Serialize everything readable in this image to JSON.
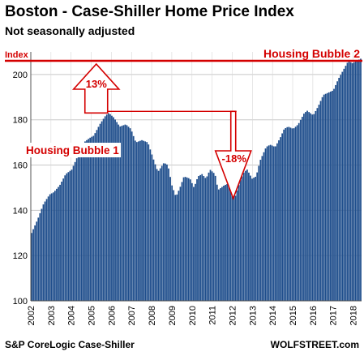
{
  "chart_data": {
    "type": "bar",
    "title": "Boston - Case-Shiller Home Price Index",
    "subtitle": "Not seasonally adjusted",
    "ylabel": "Index",
    "source": "S&P CoreLogic Case-Shiller",
    "watermark": "WOLFSTREET.com",
    "ylim": [
      100,
      210
    ],
    "yticks": [
      100,
      120,
      140,
      160,
      180,
      200
    ],
    "x_start": 2002,
    "x_end": 2018.42,
    "xticks": [
      "2002",
      "2003",
      "2004",
      "2005",
      "2006",
      "2007",
      "2008",
      "2009",
      "2010",
      "2011",
      "2012",
      "2013",
      "2014",
      "2015",
      "2016",
      "2017",
      "2018"
    ],
    "bar_color": "#1f4e8c",
    "grid": true,
    "anchors": [
      [
        2002.0,
        130
      ],
      [
        2002.3,
        136
      ],
      [
        2002.6,
        143
      ],
      [
        2002.9,
        147
      ],
      [
        2003.1,
        148
      ],
      [
        2003.4,
        151
      ],
      [
        2003.7,
        156
      ],
      [
        2004.0,
        158
      ],
      [
        2004.3,
        164
      ],
      [
        2004.6,
        170
      ],
      [
        2004.9,
        172
      ],
      [
        2005.1,
        173
      ],
      [
        2005.4,
        178
      ],
      [
        2005.7,
        182
      ],
      [
        2005.85,
        183
      ],
      [
        2006.1,
        181
      ],
      [
        2006.4,
        177
      ],
      [
        2006.7,
        178
      ],
      [
        2006.95,
        176
      ],
      [
        2007.2,
        170
      ],
      [
        2007.5,
        171
      ],
      [
        2007.8,
        170
      ],
      [
        2008.1,
        162
      ],
      [
        2008.3,
        157
      ],
      [
        2008.6,
        161
      ],
      [
        2008.8,
        160
      ],
      [
        2009.0,
        151
      ],
      [
        2009.2,
        146
      ],
      [
        2009.4,
        150
      ],
      [
        2009.6,
        155
      ],
      [
        2009.9,
        154
      ],
      [
        2010.1,
        150
      ],
      [
        2010.3,
        155
      ],
      [
        2010.5,
        156
      ],
      [
        2010.7,
        154
      ],
      [
        2010.9,
        158
      ],
      [
        2011.15,
        156
      ],
      [
        2011.3,
        149
      ],
      [
        2011.6,
        151
      ],
      [
        2011.85,
        152
      ],
      [
        2012.0,
        149
      ],
      [
        2012.15,
        146
      ],
      [
        2012.4,
        153
      ],
      [
        2012.6,
        157
      ],
      [
        2012.75,
        158
      ],
      [
        2013.0,
        154
      ],
      [
        2013.2,
        155
      ],
      [
        2013.4,
        162
      ],
      [
        2013.7,
        168
      ],
      [
        2013.9,
        169
      ],
      [
        2014.15,
        168
      ],
      [
        2014.4,
        172
      ],
      [
        2014.6,
        176
      ],
      [
        2014.8,
        177
      ],
      [
        2015.05,
        176
      ],
      [
        2015.3,
        178
      ],
      [
        2015.6,
        183
      ],
      [
        2015.75,
        184
      ],
      [
        2016.05,
        182
      ],
      [
        2016.3,
        186
      ],
      [
        2016.55,
        191
      ],
      [
        2016.8,
        192
      ],
      [
        2017.05,
        193
      ],
      [
        2017.3,
        198
      ],
      [
        2017.55,
        202
      ],
      [
        2017.8,
        206
      ],
      [
        2018.0,
        205
      ],
      [
        2018.2,
        206
      ],
      [
        2018.42,
        207
      ]
    ],
    "annotations": {
      "index_label": "Index",
      "bubble1_label": "Housing Bubble 1",
      "bubble2_label": "Housing Bubble 2",
      "up_pct": "13%",
      "down_pct": "-18%",
      "bubble2_line_value": 207
    }
  },
  "annotation_colors": {
    "red": "#d40000"
  }
}
